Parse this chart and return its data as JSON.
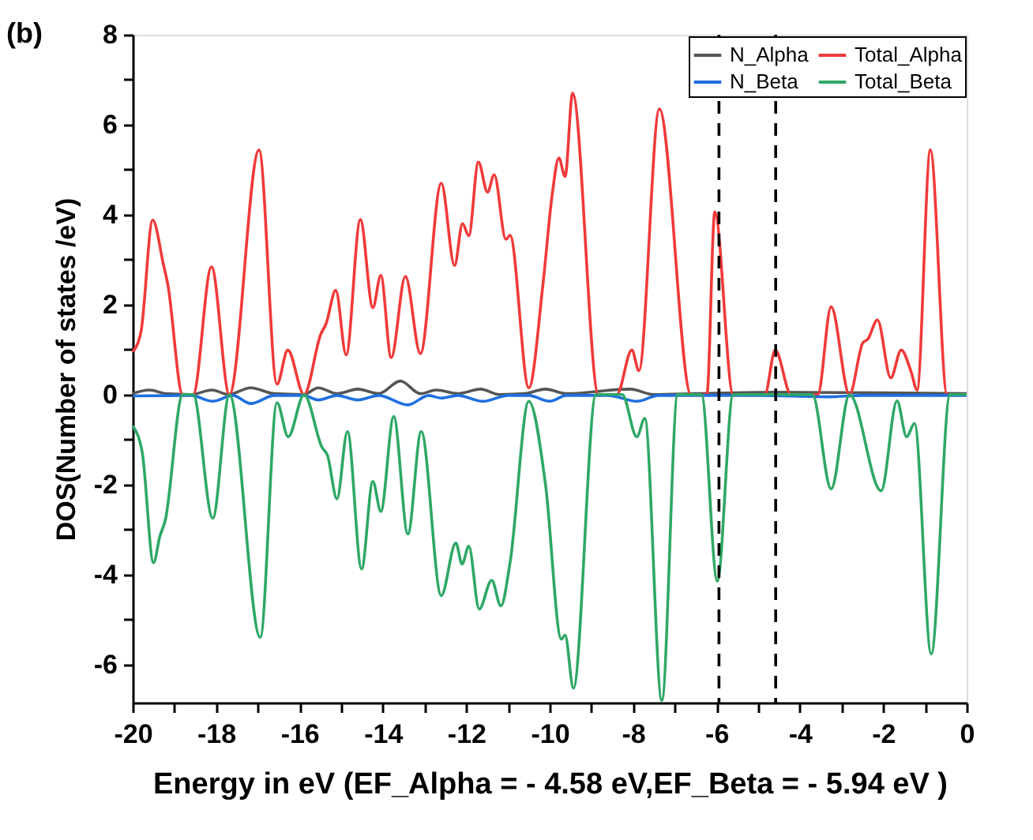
{
  "chart_data": {
    "type": "line",
    "title": "(b)",
    "xlabel": "Energy in eV (EF_Alpha = - 4.58 eV,EF_Beta = - 5.94 eV )",
    "ylabel": "DOS(Number of states /eV)",
    "xlim": [
      -20,
      0
    ],
    "ylim": [
      -6.85,
      8
    ],
    "xticks": [
      -20,
      {
        "value": -19,
        "label": null
      },
      -18,
      {
        "value": -17,
        "label": null
      },
      -16,
      {
        "value": -15,
        "label": null
      },
      -14,
      {
        "value": -13,
        "label": null
      },
      -12,
      {
        "value": -11,
        "label": null
      },
      -10,
      {
        "value": -9,
        "label": null
      },
      -8,
      {
        "value": -7,
        "label": null
      },
      -6,
      {
        "value": -5,
        "label": null
      },
      -4,
      {
        "value": -3,
        "label": null
      },
      -2,
      {
        "value": -1,
        "label": null
      },
      0
    ],
    "yticks": [
      -6,
      {
        "value": -5,
        "label": null
      },
      -4,
      {
        "value": -3,
        "label": null
      },
      -2,
      {
        "value": -1,
        "label": null
      },
      0,
      {
        "value": 1,
        "label": null
      },
      2,
      {
        "value": 3,
        "label": null
      },
      4,
      {
        "value": 5,
        "label": null
      },
      6,
      {
        "value": 7,
        "label": null
      },
      8
    ],
    "grid": false,
    "legend": "top right",
    "marker": "none",
    "line_style": "solid",
    "ref_lines": [
      {
        "axis": "x",
        "value": -4.58,
        "color": "#000000",
        "line_style": "dashed"
      },
      {
        "axis": "x",
        "value": -5.94,
        "color": "#000000",
        "line_style": "dashed"
      }
    ],
    "series": [
      {
        "name": "N_Alpha",
        "color": "#555555",
        "x": [
          -20,
          -19.6,
          -19.2,
          -18.6,
          -18.1,
          -17.7,
          -17.17,
          -16.6,
          -15.9,
          -15.55,
          -15.1,
          -14.6,
          -14.1,
          -13.58,
          -13.1,
          -12.72,
          -12.2,
          -11.66,
          -11.2,
          -10.6,
          -10.1,
          -9.6,
          -8.07,
          -7.5,
          -6.5,
          -4.6,
          -2.0,
          0
        ],
        "values": [
          0.02,
          0.1,
          0.02,
          0.0,
          0.1,
          0.0,
          0.15,
          0.02,
          0.0,
          0.15,
          0.02,
          0.12,
          0.02,
          0.3,
          0.02,
          0.1,
          0.02,
          0.12,
          0.0,
          0.02,
          0.12,
          0.02,
          0.12,
          0.0,
          0.02,
          0.05,
          0.04,
          0.02
        ]
      },
      {
        "name": "Total_Alpha",
        "color": "#f03a3a",
        "x": [
          -20,
          -19.8,
          -19.52,
          -19.26,
          -19.16,
          -18.8,
          -18.55,
          -18.11,
          -17.68,
          -16.97,
          -16.54,
          -16.28,
          -15.89,
          -15.49,
          -15.36,
          -15.13,
          -14.88,
          -14.54,
          -14.24,
          -14.05,
          -13.8,
          -13.46,
          -13.1,
          -12.6,
          -12.28,
          -12.09,
          -11.94,
          -11.71,
          -11.49,
          -11.33,
          -11.05,
          -10.95,
          -10.5,
          -10.16,
          -9.94,
          -9.78,
          -9.63,
          -9.45,
          -8.83,
          -8.39,
          -8.03,
          -7.86,
          -7.37,
          -6.61,
          -6.23,
          -6.04,
          -5.6,
          -4.84,
          -4.59,
          -4.21,
          -3.57,
          -3.25,
          -2.81,
          -2.49,
          -2.37,
          -2.14,
          -1.82,
          -1.57,
          -1.33,
          -1.19,
          -0.87,
          -0.47,
          0
        ],
        "values": [
          0.95,
          1.4,
          3.88,
          2.88,
          2.46,
          0,
          0,
          2.84,
          0,
          5.44,
          0.23,
          0.99,
          0,
          1.34,
          1.58,
          2.32,
          0.88,
          3.89,
          1.93,
          2.65,
          0.82,
          2.63,
          0.91,
          4.7,
          2.87,
          3.8,
          3.53,
          5.17,
          4.5,
          4.89,
          3.45,
          3.54,
          0.15,
          2.46,
          4.44,
          5.26,
          4.85,
          6.7,
          0,
          0,
          0.99,
          0.53,
          6.35,
          0,
          0,
          4.06,
          0,
          0,
          0.99,
          0,
          0,
          1.95,
          0,
          1.15,
          1.23,
          1.66,
          0.37,
          0.99,
          0.5,
          0.1,
          5.44,
          0,
          0
        ]
      },
      {
        "name": "N_Beta",
        "color": "#1f6fe0",
        "x": [
          -20,
          -18.6,
          -18.08,
          -17.6,
          -17.17,
          -16.6,
          -15.9,
          -15.55,
          -15.1,
          -14.6,
          -14.1,
          -13.4,
          -12.9,
          -12.6,
          -12.2,
          -11.6,
          -11.0,
          -10.5,
          -10.0,
          -9.6,
          -8.6,
          -7.9,
          -7.4,
          -5.0,
          -3.3,
          -2.5,
          0
        ],
        "values": [
          -0.03,
          -0.02,
          -0.15,
          -0.02,
          -0.2,
          -0.02,
          -0.02,
          -0.12,
          -0.02,
          -0.12,
          -0.02,
          -0.23,
          -0.02,
          -0.08,
          -0.02,
          -0.15,
          -0.02,
          -0.02,
          -0.15,
          -0.02,
          -0.02,
          -0.15,
          -0.02,
          -0.02,
          -0.05,
          -0.02,
          -0.02
        ]
      },
      {
        "name": "Total_Beta",
        "color": "#2ea866",
        "x": [
          -20,
          -19.77,
          -19.5,
          -19.35,
          -19.22,
          -18.8,
          -18.55,
          -18.08,
          -17.68,
          -16.94,
          -16.54,
          -16.27,
          -15.89,
          -15.46,
          -15.33,
          -15.1,
          -14.85,
          -14.51,
          -14.24,
          -14.05,
          -13.74,
          -13.4,
          -13.08,
          -12.6,
          -12.25,
          -12.1,
          -11.94,
          -11.69,
          -11.39,
          -11.17,
          -10.95,
          -10.5,
          -10.1,
          -9.72,
          -9.63,
          -9.43,
          -8.89,
          -8.26,
          -7.91,
          -7.72,
          -7.31,
          -6.93,
          -6.36,
          -5.98,
          -5.6,
          -3.7,
          -3.25,
          -2.81,
          -2.05,
          -1.67,
          -1.44,
          -1.25,
          -0.85,
          -0.4,
          0
        ],
        "values": [
          -0.7,
          -1.29,
          -3.74,
          -3.16,
          -2.8,
          0,
          0,
          -2.75,
          0,
          -5.4,
          -0.18,
          -0.94,
          0,
          -1.17,
          -1.35,
          -2.32,
          -0.82,
          -3.88,
          -1.93,
          -2.6,
          -0.49,
          -3.1,
          -0.82,
          -4.47,
          -3.3,
          -3.77,
          -3.37,
          -4.77,
          -4.13,
          -4.7,
          -3.74,
          -0.15,
          -2.0,
          -5.44,
          -5.35,
          -6.53,
          0,
          0,
          -0.94,
          -0.53,
          -6.8,
          0,
          0,
          -4.15,
          0,
          0,
          -2.1,
          0,
          -2.14,
          -0.14,
          -0.94,
          -0.64,
          -5.77,
          0,
          0
        ]
      }
    ]
  }
}
